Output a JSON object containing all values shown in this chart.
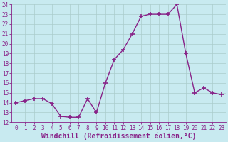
{
  "x": [
    0,
    1,
    2,
    3,
    4,
    5,
    6,
    7,
    8,
    9,
    10,
    11,
    12,
    13,
    14,
    15,
    16,
    17,
    18,
    19,
    20,
    21,
    22,
    23
  ],
  "y": [
    14.0,
    14.2,
    14.4,
    14.4,
    13.9,
    12.6,
    12.5,
    12.5,
    14.4,
    13.0,
    16.0,
    18.4,
    19.4,
    21.0,
    22.8,
    23.0,
    23.0,
    23.0,
    24.0,
    19.0,
    15.0,
    15.5,
    15.0,
    14.8
  ],
  "line_color": "#882288",
  "marker": "+",
  "marker_size": 4,
  "marker_lw": 1.2,
  "line_width": 1.0,
  "bg_color": "#c8eaf0",
  "grid_color": "#aacccc",
  "xlabel": "Windchill (Refroidissement éolien,°C)",
  "ylim": [
    12,
    24
  ],
  "xlim": [
    -0.5,
    23.5
  ],
  "yticks": [
    12,
    13,
    14,
    15,
    16,
    17,
    18,
    19,
    20,
    21,
    22,
    23,
    24
  ],
  "xticks": [
    0,
    1,
    2,
    3,
    4,
    5,
    6,
    7,
    8,
    9,
    10,
    11,
    12,
    13,
    14,
    15,
    16,
    17,
    18,
    19,
    20,
    21,
    22,
    23
  ],
  "tick_color": "#882288",
  "tick_fontsize": 5.5,
  "xlabel_fontsize": 7.0,
  "label_color": "#882288"
}
